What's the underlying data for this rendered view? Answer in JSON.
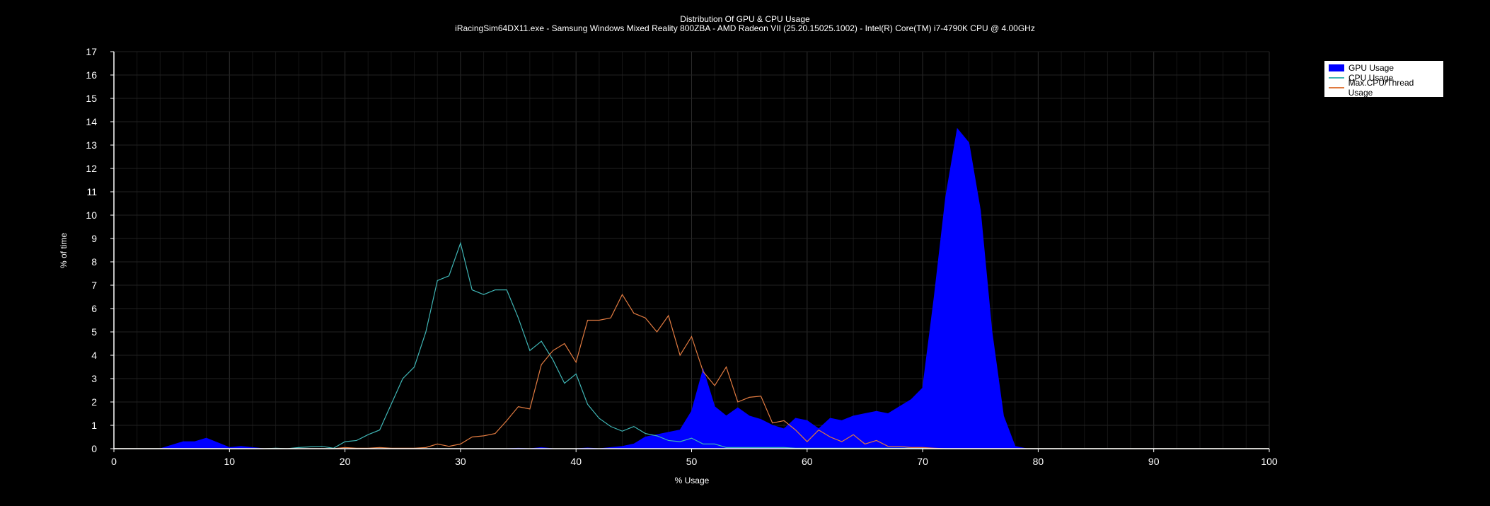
{
  "chart_data": {
    "type": "area",
    "title": "Distribution Of GPU & CPU Usage",
    "subtitle": "iRacingSim64DX11.exe - Samsung Windows Mixed Reality 800ZBA - AMD Radeon VII (25.20.15025.1002) - Intel(R) Core(TM) i7-4790K CPU @ 4.00GHz",
    "xlabel": "% Usage",
    "ylabel": "% of time",
    "xlim": [
      0,
      100
    ],
    "ylim": [
      0,
      17
    ],
    "xticks": [
      "0",
      "10",
      "20",
      "30",
      "40",
      "50",
      "60",
      "70",
      "80",
      "90",
      "100"
    ],
    "yticks": [
      "0",
      "1",
      "2",
      "3",
      "4",
      "5",
      "6",
      "7",
      "8",
      "9",
      "10",
      "11",
      "12",
      "13",
      "14",
      "15",
      "16",
      "17"
    ],
    "grid": true,
    "legend_position": "top-right",
    "x": [
      0,
      1,
      2,
      3,
      4,
      5,
      6,
      7,
      8,
      9,
      10,
      11,
      12,
      13,
      14,
      15,
      16,
      17,
      18,
      19,
      20,
      21,
      22,
      23,
      24,
      25,
      26,
      27,
      28,
      29,
      30,
      31,
      32,
      33,
      34,
      35,
      36,
      37,
      38,
      39,
      40,
      41,
      42,
      43,
      44,
      45,
      46,
      47,
      48,
      49,
      50,
      51,
      52,
      53,
      54,
      55,
      56,
      57,
      58,
      59,
      60,
      61,
      62,
      63,
      64,
      65,
      66,
      67,
      68,
      69,
      70,
      71,
      72,
      73,
      74,
      75,
      76,
      77,
      78,
      79,
      80,
      81,
      82,
      83,
      84,
      85,
      86,
      87,
      88,
      89,
      90,
      91,
      92,
      93,
      94,
      95,
      96,
      97,
      98,
      99,
      100
    ],
    "series": [
      {
        "name": "GPU Usage",
        "style": "area",
        "color": "#0000ff",
        "values": [
          0,
          0,
          0,
          0,
          0,
          0.15,
          0.3,
          0.3,
          0.45,
          0.25,
          0.05,
          0.1,
          0.05,
          0,
          0,
          0,
          0,
          0,
          0,
          0,
          0,
          0,
          0,
          0,
          0,
          0,
          0,
          0,
          0,
          0,
          0,
          0,
          0,
          0,
          0,
          0.02,
          0,
          0.05,
          0,
          0,
          0,
          0.03,
          0,
          0.05,
          0.1,
          0.2,
          0.5,
          0.6,
          0.7,
          0.8,
          1.6,
          3.4,
          1.8,
          1.4,
          1.75,
          1.4,
          1.25,
          1.0,
          0.85,
          1.3,
          1.2,
          0.85,
          1.3,
          1.2,
          1.4,
          1.5,
          1.6,
          1.5,
          1.8,
          2.1,
          2.6,
          6.5,
          10.8,
          13.7,
          13.1,
          10.2,
          5.0,
          1.4,
          0.1,
          0,
          0,
          0,
          0,
          0,
          0,
          0,
          0,
          0,
          0,
          0,
          0,
          0,
          0,
          0,
          0,
          0,
          0,
          0,
          0,
          0,
          0
        ]
      },
      {
        "name": "CPU Usage",
        "style": "line",
        "color": "#3fb5b5",
        "values": [
          0,
          0,
          0,
          0,
          0,
          0,
          0,
          0,
          0,
          0,
          0,
          0,
          0,
          0,
          0.02,
          0,
          0.05,
          0.08,
          0.1,
          0.02,
          0.3,
          0.35,
          0.6,
          0.8,
          1.9,
          3.0,
          3.5,
          5.0,
          7.2,
          7.4,
          8.8,
          6.8,
          6.6,
          6.8,
          6.8,
          5.6,
          4.2,
          4.6,
          3.8,
          2.8,
          3.2,
          1.9,
          1.3,
          0.95,
          0.75,
          0.95,
          0.65,
          0.55,
          0.35,
          0.3,
          0.45,
          0.2,
          0.2,
          0.05,
          0.05,
          0.05,
          0.05,
          0.05,
          0.05,
          0.02,
          0.02,
          0.02,
          0.02,
          0.02,
          0.02,
          0.02,
          0.02,
          0.02,
          0.02,
          0.02,
          0.02,
          0,
          0,
          0,
          0,
          0,
          0,
          0,
          0,
          0,
          0,
          0,
          0,
          0,
          0,
          0,
          0,
          0,
          0,
          0,
          0,
          0,
          0,
          0,
          0,
          0,
          0,
          0,
          0,
          0,
          0
        ]
      },
      {
        "name": "Max.CPU/Thread Usage",
        "style": "line",
        "color": "#e07a40",
        "values": [
          0,
          0,
          0,
          0,
          0,
          0,
          0,
          0,
          0,
          0,
          0,
          0,
          0,
          0,
          0,
          0,
          0,
          0,
          0,
          0,
          0.05,
          0.02,
          0.02,
          0.05,
          0.02,
          0.02,
          0.02,
          0.05,
          0.2,
          0.1,
          0.2,
          0.5,
          0.55,
          0.65,
          1.2,
          1.8,
          1.7,
          3.6,
          4.2,
          4.5,
          3.7,
          5.5,
          5.5,
          5.6,
          6.6,
          5.8,
          5.6,
          5.0,
          5.7,
          4.0,
          4.8,
          3.3,
          2.7,
          3.5,
          2.0,
          2.2,
          2.25,
          1.1,
          1.2,
          0.8,
          0.3,
          0.8,
          0.5,
          0.3,
          0.6,
          0.2,
          0.35,
          0.1,
          0.1,
          0.05,
          0.05,
          0.02,
          0,
          0,
          0,
          0,
          0,
          0,
          0,
          0,
          0,
          0,
          0,
          0,
          0,
          0,
          0,
          0,
          0,
          0,
          0,
          0,
          0,
          0,
          0,
          0,
          0,
          0,
          0,
          0,
          0
        ]
      }
    ]
  }
}
